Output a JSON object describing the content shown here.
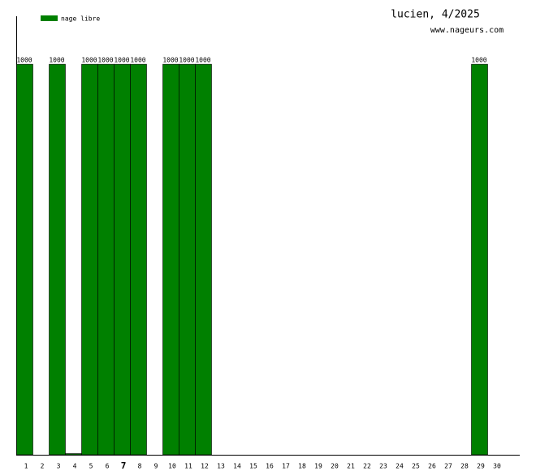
{
  "chart_data": {
    "type": "bar",
    "title": "lucien, 4/2025",
    "subtitle": "www.nageurs.com",
    "categories": [
      "1",
      "2",
      "3",
      "4",
      "5",
      "6",
      "7",
      "8",
      "9",
      "10",
      "11",
      "12",
      "13",
      "14",
      "15",
      "16",
      "17",
      "18",
      "19",
      "20",
      "21",
      "22",
      "23",
      "24",
      "25",
      "26",
      "27",
      "28",
      "29",
      "30"
    ],
    "highlighted_category": "7",
    "series": [
      {
        "name": "nage libre",
        "color": "#008000",
        "values": [
          1000,
          0,
          1000,
          3,
          1000,
          1000,
          1000,
          1000,
          0,
          1000,
          1000,
          1000,
          0,
          0,
          0,
          0,
          0,
          0,
          0,
          0,
          0,
          0,
          0,
          0,
          0,
          0,
          0,
          0,
          1000,
          0
        ],
        "value_labels": [
          "1000",
          null,
          "1000",
          null,
          "1000",
          "1000",
          "1000",
          "1000",
          null,
          "1000",
          "1000",
          "1000",
          null,
          null,
          null,
          null,
          null,
          null,
          null,
          null,
          null,
          null,
          null,
          null,
          null,
          null,
          null,
          null,
          "1000",
          null
        ]
      }
    ],
    "ylim": [
      0,
      1123
    ]
  }
}
